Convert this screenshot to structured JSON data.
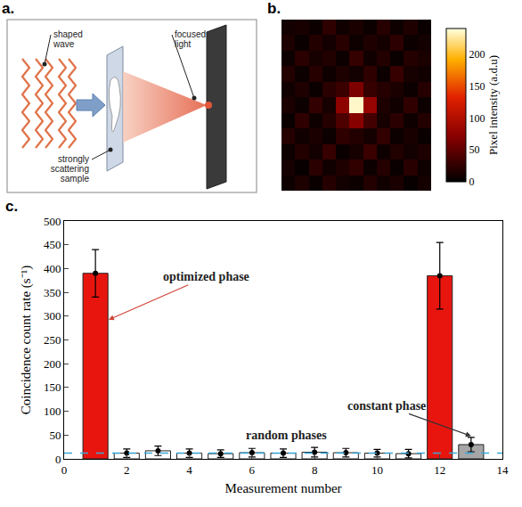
{
  "diagram": {
    "letter": "a.",
    "labels": {
      "wave": "shaped wave",
      "light": "focused light",
      "sample": "strongly scattering sample"
    }
  },
  "chart_data": [
    {
      "letter": "b.",
      "type": "heatmap",
      "tick_labels": false,
      "colorbar_title": "Pixel intensity (a.d.u)",
      "zlim": [
        0,
        240
      ],
      "zticks": [
        0,
        50,
        100,
        150,
        200
      ],
      "cells": [
        [
          8,
          15,
          5,
          20,
          10,
          6,
          18,
          9,
          14,
          4,
          11
        ],
        [
          12,
          4,
          22,
          9,
          16,
          25,
          7,
          19,
          5,
          21,
          8
        ],
        [
          6,
          18,
          10,
          28,
          5,
          12,
          30,
          8,
          17,
          10,
          15
        ],
        [
          20,
          9,
          14,
          6,
          24,
          18,
          11,
          26,
          6,
          13,
          5
        ],
        [
          5,
          24,
          8,
          19,
          40,
          70,
          35,
          12,
          22,
          8,
          18
        ],
        [
          14,
          7,
          26,
          12,
          75,
          235,
          80,
          15,
          9,
          25,
          7
        ],
        [
          9,
          16,
          5,
          22,
          30,
          65,
          28,
          20,
          14,
          6,
          20
        ],
        [
          18,
          6,
          20,
          8,
          15,
          10,
          24,
          7,
          28,
          12,
          9
        ],
        [
          7,
          22,
          12,
          17,
          6,
          27,
          9,
          18,
          5,
          19,
          14
        ],
        [
          15,
          5,
          18,
          10,
          21,
          8,
          16,
          11,
          23,
          7,
          10
        ],
        [
          10,
          13,
          7,
          24,
          9,
          14,
          6,
          20,
          8,
          16,
          5
        ]
      ]
    },
    {
      "letter": "c.",
      "type": "bar",
      "xlabel": "Measurement number",
      "ylabel": "Coincidence count rate (s⁻¹)",
      "x": [
        1,
        2,
        3,
        4,
        5,
        6,
        7,
        8,
        9,
        10,
        11,
        12,
        13
      ],
      "values": [
        390,
        12,
        17,
        12,
        11,
        13,
        12,
        14,
        13,
        12,
        11,
        385,
        30
      ],
      "errors": [
        50,
        9,
        10,
        9,
        8,
        9,
        9,
        10,
        9,
        8,
        9,
        70,
        15
      ],
      "colors": [
        "#e8150f",
        "#ffffff",
        "#ffffff",
        "#ffffff",
        "#ffffff",
        "#ffffff",
        "#ffffff",
        "#ffffff",
        "#ffffff",
        "#ffffff",
        "#ffffff",
        "#e8150f",
        "#a6a6a6"
      ],
      "xlim": [
        0,
        14
      ],
      "xticks": [
        0,
        2,
        4,
        6,
        8,
        10,
        12,
        14
      ],
      "ylim": [
        0,
        500
      ],
      "yticks": [
        0,
        50,
        100,
        150,
        200,
        250,
        300,
        350,
        400,
        450,
        500
      ],
      "reference_value": 12,
      "reference_color": "#3aa9d6",
      "annotations": [
        "optimized phase",
        "random phases",
        "constant phase"
      ]
    }
  ]
}
